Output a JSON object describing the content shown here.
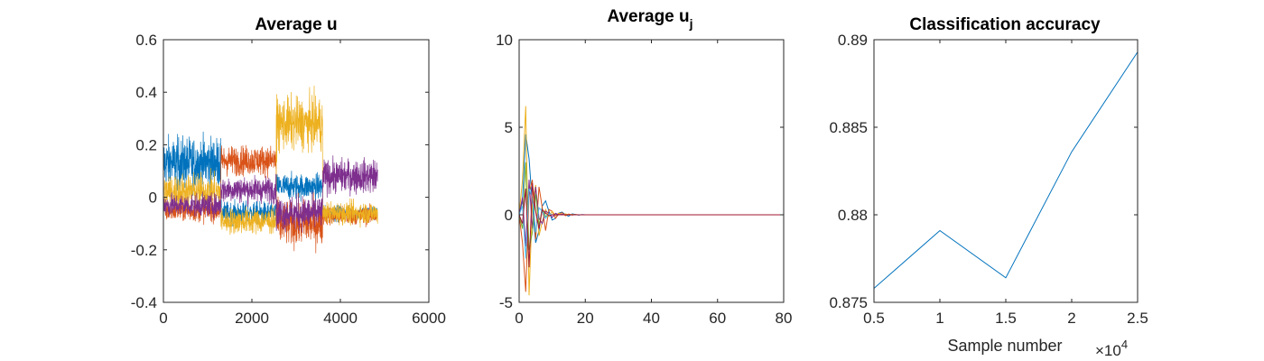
{
  "chart_data": [
    {
      "type": "line",
      "title": "Average u",
      "xlim": [
        0,
        6000
      ],
      "ylim": [
        -0.4,
        0.6
      ],
      "xticks": [
        "0",
        "2000",
        "4000",
        "6000"
      ],
      "xtick_values": [
        0,
        2000,
        4000,
        6000
      ],
      "yticks": [
        "-0.4",
        "-0.2",
        "0",
        "0.2",
        "0.4",
        "0.6"
      ],
      "ytick_values": [
        -0.4,
        -0.2,
        0,
        0.2,
        0.4,
        0.6
      ],
      "grid": false,
      "n_points": 4840,
      "series_colors": [
        "#0072BD",
        "#D95319",
        "#EDB120",
        "#7E2F8E"
      ],
      "segments": [
        {
          "x": [
            0,
            1300
          ],
          "means": [
            0.13,
            -0.05,
            0.02,
            -0.03
          ],
          "spreads": [
            0.07,
            0.03,
            0.05,
            0.03
          ]
        },
        {
          "x": [
            1300,
            2550
          ],
          "means": [
            -0.06,
            0.14,
            -0.09,
            0.03
          ],
          "spreads": [
            0.03,
            0.04,
            0.035,
            0.035
          ]
        },
        {
          "x": [
            2550,
            3600
          ],
          "means": [
            0.04,
            -0.1,
            0.28,
            -0.06
          ],
          "spreads": [
            0.035,
            0.06,
            0.07,
            0.045
          ]
        },
        {
          "x": [
            3600,
            4840
          ],
          "means": [
            -0.06,
            -0.07,
            -0.06,
            0.08
          ],
          "spreads": [
            0.02,
            0.025,
            0.03,
            0.045
          ]
        }
      ]
    },
    {
      "type": "line",
      "title": "Average u",
      "title_subscript": "j",
      "xlim": [
        0,
        80
      ],
      "ylim": [
        -5,
        10
      ],
      "xticks": [
        "0",
        "20",
        "40",
        "60",
        "80"
      ],
      "xtick_values": [
        0,
        20,
        40,
        60,
        80
      ],
      "yticks": [
        "-5",
        "0",
        "5",
        "10"
      ],
      "ytick_values": [
        -5,
        0,
        5,
        10
      ],
      "grid": false,
      "x": [
        0,
        1,
        2,
        3,
        4,
        5,
        6,
        7,
        8,
        9,
        10,
        11,
        12,
        13,
        14,
        15,
        16,
        17,
        18,
        19,
        20,
        22,
        25,
        30,
        40,
        50,
        60,
        70,
        80
      ],
      "series": [
        {
          "color": "#0072BD",
          "values": [
            0,
            0.8,
            4.6,
            3.2,
            0.6,
            -1.6,
            -0.9,
            0.5,
            0.8,
            0.2,
            -0.3,
            -0.2,
            0.1,
            0.15,
            0.0,
            -0.08,
            0.05,
            0.02,
            -0.02,
            0.01,
            0,
            0,
            0,
            0,
            0,
            0,
            0,
            0,
            0
          ]
        },
        {
          "color": "#D95319",
          "values": [
            0,
            -1.6,
            -4.4,
            1.2,
            2.0,
            -1.4,
            1.6,
            0.4,
            -0.9,
            0.3,
            0.2,
            -0.2,
            0.05,
            0.12,
            -0.05,
            0.04,
            -0.02,
            0.01,
            0,
            0,
            0,
            0,
            0,
            0,
            0,
            0,
            0,
            0,
            0
          ]
        },
        {
          "color": "#EDB120",
          "values": [
            0,
            2.0,
            6.2,
            -4.6,
            0.6,
            1.7,
            -1.2,
            -0.4,
            0.3,
            -0.1,
            0.2,
            -0.05,
            0.1,
            0,
            0.05,
            0,
            0.02,
            0,
            0,
            0,
            0,
            0,
            0,
            0,
            0,
            0,
            0,
            0,
            0
          ]
        },
        {
          "color": "#7E2F8E",
          "values": [
            0,
            1.0,
            -1.8,
            2.0,
            -0.8,
            1.6,
            -0.2,
            -0.5,
            0.2,
            0.1,
            -0.15,
            0.08,
            0,
            0.03,
            0,
            0,
            0,
            0,
            0,
            0,
            0,
            0,
            0,
            0,
            0,
            0,
            0,
            0,
            0
          ]
        },
        {
          "color": "#77AC30",
          "values": [
            0,
            -0.8,
            3.0,
            -2.0,
            -1.0,
            1.2,
            -0.6,
            0.3,
            -0.1,
            0.05,
            0,
            0,
            0,
            0,
            0,
            0,
            0,
            0,
            0,
            0,
            0,
            0,
            0,
            0,
            0,
            0,
            0,
            0,
            0
          ]
        },
        {
          "color": "#4DBEEE",
          "values": [
            0,
            0.5,
            -2.5,
            1.5,
            1.0,
            -1.0,
            0.4,
            0.2,
            -0.2,
            0.05,
            0,
            0,
            0,
            0,
            0,
            0,
            0,
            0,
            0,
            0,
            0,
            0,
            0,
            0,
            0,
            0,
            0,
            0,
            0
          ]
        },
        {
          "color": "#A2142F",
          "values": [
            0,
            -0.5,
            1.5,
            -3.0,
            1.8,
            0.2,
            -0.8,
            0.3,
            0.1,
            -0.05,
            0,
            0,
            0,
            0,
            0,
            0,
            0,
            0,
            0,
            0,
            0,
            0,
            0,
            0,
            0,
            0,
            0,
            0,
            0
          ]
        }
      ]
    },
    {
      "type": "line",
      "title": "Classification accuracy",
      "xlabel": "Sample number",
      "x_exponent_label": "×10",
      "x_exponent": "4",
      "xlim": [
        0.5,
        2.5
      ],
      "ylim": [
        0.875,
        0.89
      ],
      "xticks": [
        "0.5",
        "1",
        "1.5",
        "2",
        "2.5"
      ],
      "xtick_values": [
        0.5,
        1,
        1.5,
        2,
        2.5
      ],
      "yticks": [
        "0.875",
        "0.88",
        "0.885",
        "0.89"
      ],
      "ytick_values": [
        0.875,
        0.88,
        0.885,
        0.89
      ],
      "grid": false,
      "x": [
        0.5,
        1,
        1.5,
        2,
        2.5
      ],
      "series": [
        {
          "color": "#0072BD",
          "values": [
            0.8758,
            0.8791,
            0.8764,
            0.8836,
            0.8893
          ]
        }
      ]
    }
  ]
}
